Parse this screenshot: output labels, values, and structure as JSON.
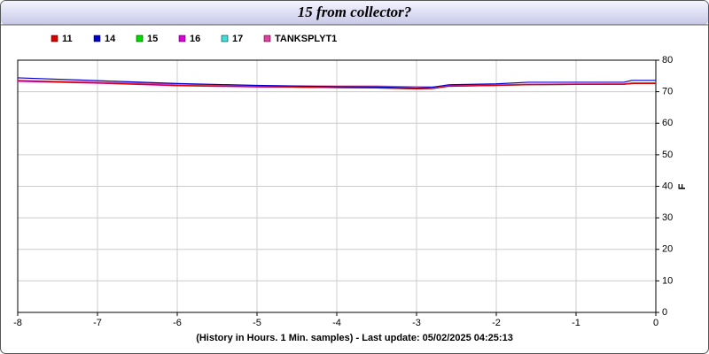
{
  "chart_data": {
    "type": "line",
    "title": "15 from collector?",
    "x_label": "(History in Hours. 1 Min. samples) - Last update: 05/02/2025 04:25:13",
    "y_label": "F",
    "x": [
      -8,
      -7,
      -6,
      -5,
      -4,
      -3.5,
      -3,
      -2.8,
      -2.6,
      -2,
      -1.6,
      -1,
      -0.4,
      -0.3,
      0
    ],
    "series": [
      {
        "name": "15",
        "color": "#00dd00",
        "values": [
          73.5,
          72.8,
          72.0,
          71.6,
          71.3,
          71.2,
          70.9,
          71.0,
          71.7,
          72.0,
          72.2,
          72.3,
          72.4,
          72.6,
          72.6
        ]
      },
      {
        "name": "17",
        "color": "#44dddd",
        "values": [
          73.5,
          72.8,
          72.0,
          71.6,
          71.3,
          71.2,
          70.9,
          71.0,
          71.7,
          72.0,
          72.2,
          72.3,
          72.4,
          72.6,
          72.6
        ]
      },
      {
        "name": "TANKSPLYT1",
        "color": "#e0409f",
        "values": [
          73.6,
          73.0,
          72.4,
          71.9,
          71.8,
          71.8,
          71.6,
          71.5,
          72.0,
          72.2,
          72.4,
          72.5,
          72.5,
          72.8,
          72.8
        ]
      },
      {
        "name": "16",
        "color": "#dd00dd",
        "values": [
          73.3,
          72.7,
          71.9,
          71.5,
          71.4,
          71.3,
          71.0,
          71.0,
          71.8,
          72.0,
          72.3,
          72.3,
          72.3,
          72.6,
          72.7
        ]
      },
      {
        "name": "11",
        "color": "#dd0000",
        "values": [
          73.5,
          72.8,
          72.0,
          71.6,
          71.3,
          71.2,
          70.9,
          71.0,
          71.7,
          72.0,
          72.2,
          72.3,
          72.4,
          72.6,
          72.6
        ]
      },
      {
        "name": "14",
        "color": "#0000cc",
        "values": [
          74.4,
          73.5,
          72.6,
          72.0,
          71.6,
          71.5,
          71.2,
          71.4,
          72.2,
          72.5,
          73.0,
          73.0,
          73.0,
          73.6,
          73.6
        ]
      }
    ],
    "legend_order": [
      "11",
      "14",
      "15",
      "16",
      "17",
      "TANKSPLYT1"
    ],
    "xlim": [
      -8,
      0
    ],
    "xticks": [
      -8,
      -7,
      -6,
      -5,
      -4,
      -3,
      -2,
      -1,
      0
    ],
    "ylim": [
      0,
      80
    ],
    "yticks": [
      0,
      10,
      20,
      30,
      40,
      50,
      60,
      70,
      80
    ],
    "grid": true
  }
}
